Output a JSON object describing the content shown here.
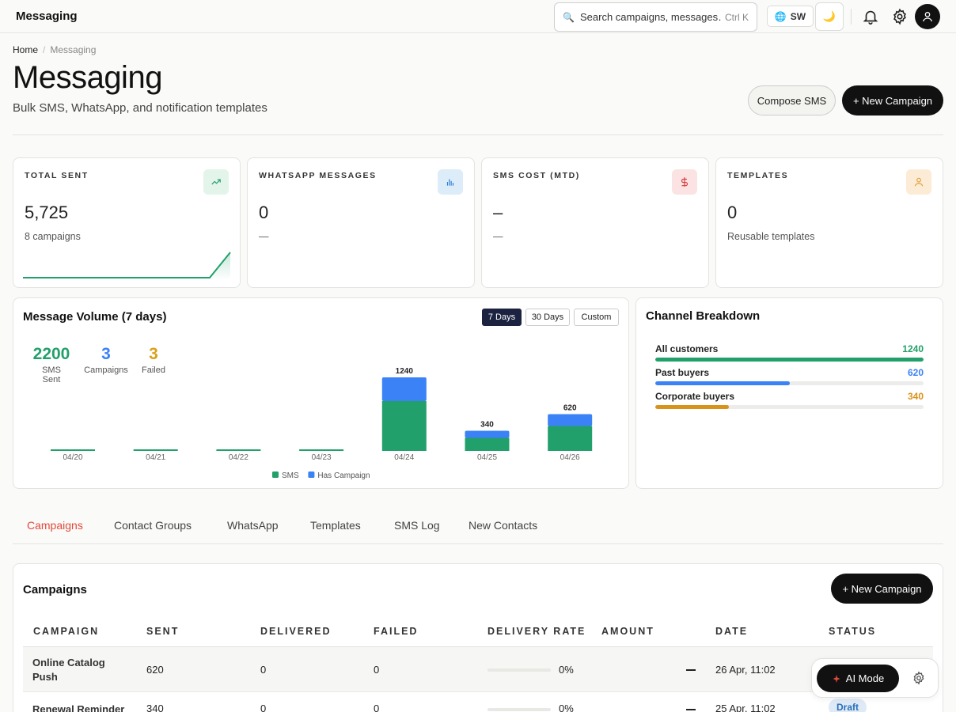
{
  "topbar": {
    "app_title": "Messaging",
    "search_placeholder": "Search campaigns, messages…",
    "search_shortcut": "Ctrl K",
    "language_code": "SW"
  },
  "breadcrumb": {
    "home": "Home",
    "separator": "/",
    "current": "Messaging"
  },
  "header": {
    "title": "Messaging",
    "subtitle": "Bulk SMS, WhatsApp, and notification templates",
    "compose_label": "Compose SMS",
    "new_campaign_label": "+ New Campaign"
  },
  "stats": [
    {
      "label": "TOTAL SENT",
      "value": "5,725",
      "sub": "8 campaigns",
      "icon": "trending-up-icon",
      "color": "#22a06b",
      "bg": "#e3f4ea"
    },
    {
      "label": "WHATSAPP MESSAGES",
      "value": "0",
      "sub": "—",
      "icon": "bar-chart-icon",
      "color": "#2f7fd6",
      "bg": "#dcecf9"
    },
    {
      "label": "SMS COST (MTD)",
      "value": "–",
      "sub": "—",
      "icon": "dollar-icon",
      "color": "#d63c3c",
      "bg": "#fbe3e3"
    },
    {
      "label": "TEMPLATES",
      "value": "0",
      "sub": "Reusable templates",
      "icon": "user-icon",
      "color": "#e0a03a",
      "bg": "#fcecd6"
    }
  ],
  "volume": {
    "title": "Message Volume (7 days)",
    "ranges": [
      "7 Days",
      "30 Days",
      "Custom"
    ],
    "active_range": "7 Days",
    "kpis": [
      {
        "value": "2200",
        "label": "SMS Sent",
        "color": "#22a06b"
      },
      {
        "value": "3",
        "label": "Campaigns",
        "color": "#3b82f6"
      },
      {
        "value": "3",
        "label": "Failed",
        "color": "#d9a21b"
      }
    ]
  },
  "chart_data": {
    "type": "bar",
    "categories": [
      "04/20",
      "04/21",
      "04/22",
      "04/23",
      "04/24",
      "04/25",
      "04/26"
    ],
    "series": [
      {
        "name": "SMS",
        "values": [
          0,
          0,
          0,
          0,
          840,
          220,
          420
        ],
        "color": "#22a06b"
      },
      {
        "name": "Has Campaign",
        "values": [
          0,
          0,
          0,
          0,
          400,
          120,
          200
        ],
        "color": "#3b82f6"
      }
    ],
    "totals": [
      0,
      0,
      0,
      0,
      1240,
      340,
      620
    ],
    "total_labels": [
      "",
      "",
      "",
      "",
      "1240",
      "340",
      "620"
    ],
    "ylim": [
      0,
      1400
    ],
    "stacked": true,
    "legend": "bottom-center"
  },
  "breakdown": {
    "title": "Channel Breakdown",
    "items": [
      {
        "label": "All customers",
        "value": 1240,
        "value_text": "1240",
        "fraction": 1.0,
        "color": "#22a06b"
      },
      {
        "label": "Past buyers",
        "value": 620,
        "value_text": "620",
        "fraction": 0.5,
        "color": "#3b82f6"
      },
      {
        "label": "Corporate buyers",
        "value": 340,
        "value_text": "340",
        "fraction": 0.274,
        "color": "#d9931b"
      }
    ]
  },
  "tabs": {
    "items": [
      "Campaigns",
      "Contact Groups",
      "WhatsApp",
      "Templates",
      "SMS Log",
      "New Contacts"
    ],
    "active": "Campaigns"
  },
  "campaigns": {
    "title": "Campaigns",
    "new_label": "+ New Campaign",
    "columns": [
      "CAMPAIGN",
      "SENT",
      "DELIVERED",
      "FAILED",
      "DELIVERY RATE",
      "AMOUNT",
      "DATE",
      "STATUS"
    ],
    "rows": [
      {
        "campaign": "Online Catalog Push",
        "sent": "620",
        "delivered": "0",
        "failed": "0",
        "rate": "0%",
        "rate_value": 0,
        "date": "26 Apr, 11:02",
        "status": ""
      },
      {
        "campaign": "Renewal Reminder",
        "sent": "340",
        "delivered": "0",
        "failed": "0",
        "rate": "0%",
        "rate_value": 0,
        "date": "25 Apr, 11:02",
        "status": "Draft"
      }
    ]
  },
  "ai": {
    "label": "AI Mode"
  }
}
